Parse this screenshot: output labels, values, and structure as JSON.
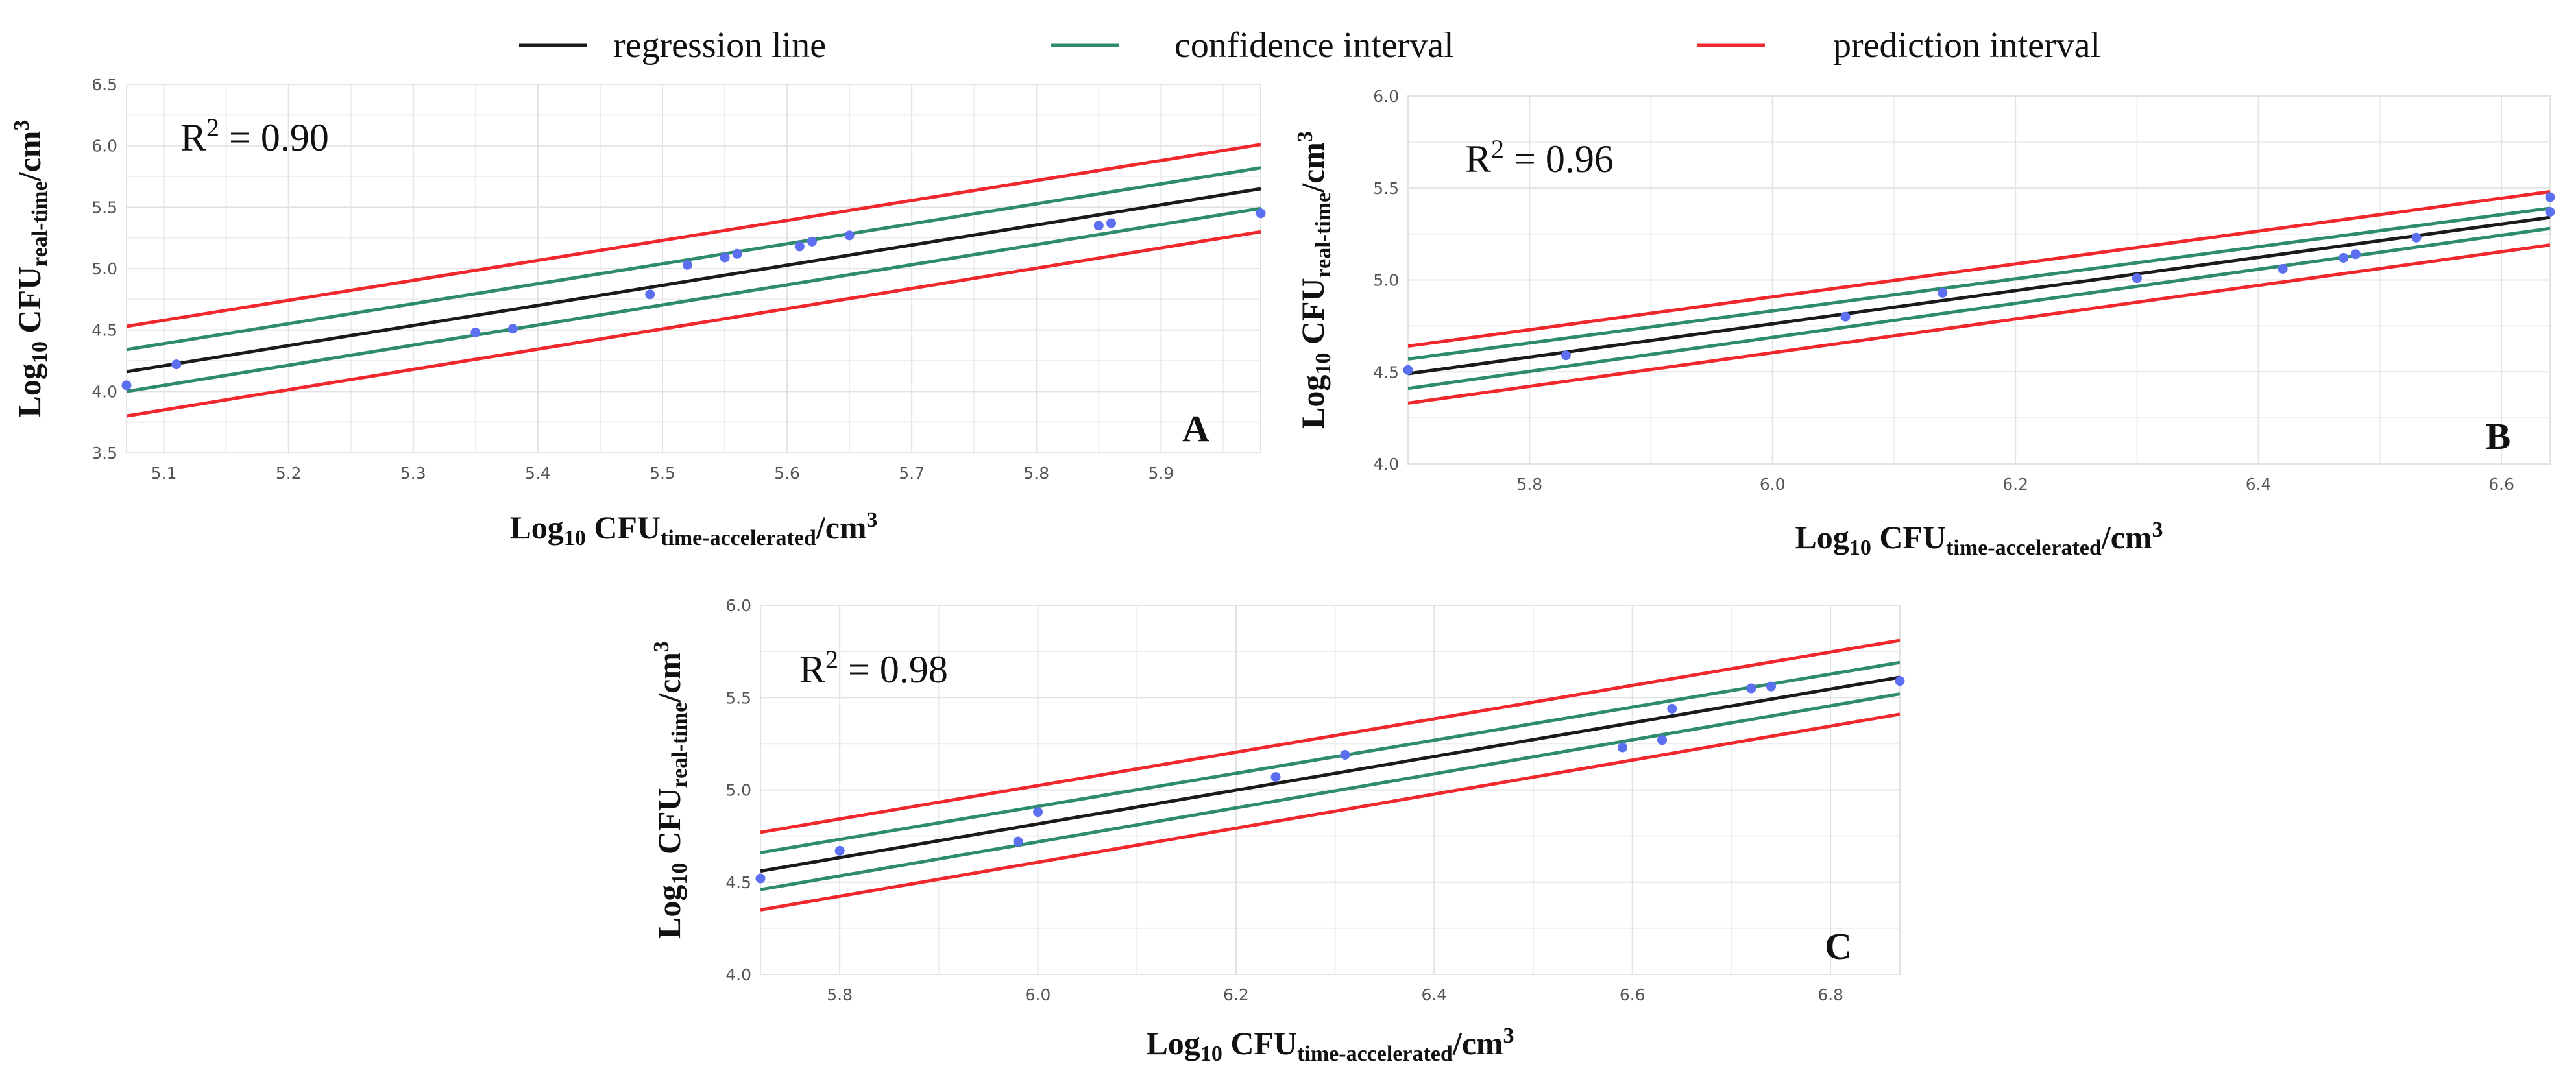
{
  "colors": {
    "regression": "#1a1a1a",
    "confidence": "#2e8b6e",
    "prediction": "#f0282d",
    "points": "#5b6ff0",
    "grid": "#e2e2e2"
  },
  "legend": [
    {
      "key": "regression",
      "label": "regression line"
    },
    {
      "key": "confidence",
      "label": "confidence interval"
    },
    {
      "key": "prediction",
      "label": "prediction interval"
    }
  ],
  "chart_data": [
    {
      "type": "scatter",
      "panel": "A",
      "annotation": {
        "base": "R",
        "sup": "2",
        "rest": " = 0.90"
      },
      "ylabel": {
        "pre": "Log",
        "sub1": "10",
        "mid": " CFU",
        "sub2": "real-time",
        "post": "/cm",
        "sup": "3"
      },
      "xlabel": {
        "pre": "Log",
        "sub1": "10",
        "mid": " CFU",
        "sub2": "time-accelerated",
        "post": "/cm",
        "sup": "3"
      },
      "xlim": [
        5.07,
        5.98
      ],
      "ylim": [
        3.5,
        6.5
      ],
      "xticks": [
        5.1,
        5.2,
        5.3,
        5.4,
        5.5,
        5.6,
        5.7,
        5.8,
        5.9
      ],
      "xtick_labels": [
        "5.1",
        "5.2",
        "5.3",
        "5.4",
        "5.5",
        "5.6",
        "5.7",
        "5.8",
        "5.9"
      ],
      "xminor": [
        5.15,
        5.25,
        5.35,
        5.45,
        5.55,
        5.65,
        5.75,
        5.85,
        5.95
      ],
      "yticks": [
        3.5,
        4.0,
        4.5,
        5.0,
        5.5,
        6.0,
        6.5
      ],
      "ytick_labels": [
        "3.5",
        "4.0",
        "4.5",
        "5.0",
        "5.5",
        "6.0",
        "6.5"
      ],
      "yminor": [
        3.75,
        4.25,
        4.75,
        5.25,
        5.75,
        6.25
      ],
      "points": [
        [
          5.07,
          4.05
        ],
        [
          5.11,
          4.22
        ],
        [
          5.35,
          4.48
        ],
        [
          5.38,
          4.51
        ],
        [
          5.49,
          4.79
        ],
        [
          5.52,
          5.03
        ],
        [
          5.55,
          5.09
        ],
        [
          5.56,
          5.12
        ],
        [
          5.61,
          5.18
        ],
        [
          5.62,
          5.22
        ],
        [
          5.65,
          5.27
        ],
        [
          5.85,
          5.35
        ],
        [
          5.86,
          5.37
        ],
        [
          5.98,
          5.45
        ]
      ],
      "lines": {
        "regression": [
          [
            5.07,
            4.16
          ],
          [
            5.98,
            5.65
          ]
        ],
        "confidence_upper": [
          [
            5.07,
            4.34
          ],
          [
            5.98,
            5.82
          ]
        ],
        "confidence_lower": [
          [
            5.07,
            4.0
          ],
          [
            5.98,
            5.49
          ]
        ],
        "prediction_upper": [
          [
            5.07,
            4.53
          ],
          [
            5.98,
            6.01
          ]
        ],
        "prediction_lower": [
          [
            5.07,
            3.8
          ],
          [
            5.98,
            5.3
          ]
        ]
      }
    },
    {
      "type": "scatter",
      "panel": "B",
      "annotation": {
        "base": "R",
        "sup": "2",
        "rest": " = 0.96"
      },
      "ylabel": {
        "pre": "Log",
        "sub1": "10",
        "mid": " CFU",
        "sub2": "real-time",
        "post": "/cm",
        "sup": "3"
      },
      "xlabel": {
        "pre": "Log",
        "sub1": "10",
        "mid": " CFU",
        "sub2": "time-accelerated",
        "post": "/cm",
        "sup": "3"
      },
      "xlim": [
        5.7,
        6.64
      ],
      "ylim": [
        4.0,
        6.0
      ],
      "xticks": [
        5.8,
        6.0,
        6.2,
        6.4,
        6.6
      ],
      "xtick_labels": [
        "5.8",
        "6.0",
        "6.2",
        "6.4",
        "6.6"
      ],
      "xminor": [
        5.9,
        6.1,
        6.3,
        6.5
      ],
      "yticks": [
        4.0,
        4.5,
        5.0,
        5.5,
        6.0
      ],
      "ytick_labels": [
        "4.0",
        "4.5",
        "5.0",
        "5.5",
        "6.0"
      ],
      "yminor": [
        4.25,
        4.75,
        5.25,
        5.75
      ],
      "points": [
        [
          5.7,
          4.51
        ],
        [
          5.83,
          4.59
        ],
        [
          6.06,
          4.8
        ],
        [
          6.14,
          4.93
        ],
        [
          6.3,
          5.01
        ],
        [
          6.42,
          5.06
        ],
        [
          6.47,
          5.12
        ],
        [
          6.48,
          5.14
        ],
        [
          6.53,
          5.23
        ],
        [
          6.64,
          5.37
        ],
        [
          6.64,
          5.45
        ]
      ],
      "lines": {
        "regression": [
          [
            5.7,
            4.49
          ],
          [
            6.64,
            5.34
          ]
        ],
        "confidence_upper": [
          [
            5.7,
            4.57
          ],
          [
            6.64,
            5.39
          ]
        ],
        "confidence_lower": [
          [
            5.7,
            4.41
          ],
          [
            6.64,
            5.28
          ]
        ],
        "prediction_upper": [
          [
            5.7,
            4.64
          ],
          [
            6.64,
            5.48
          ]
        ],
        "prediction_lower": [
          [
            5.7,
            4.33
          ],
          [
            6.64,
            5.19
          ]
        ]
      }
    },
    {
      "type": "scatter",
      "panel": "C",
      "annotation": {
        "base": "R",
        "sup": "2",
        "rest": " = 0.98"
      },
      "ylabel": {
        "pre": "Log",
        "sub1": "10",
        "mid": " CFU",
        "sub2": "real-time",
        "post": "/cm",
        "sup": "3"
      },
      "xlabel": {
        "pre": "Log",
        "sub1": "10",
        "mid": " CFU",
        "sub2": "time-accelerated",
        "post": "/cm",
        "sup": "3"
      },
      "xlim": [
        5.72,
        6.87
      ],
      "ylim": [
        4.0,
        6.0
      ],
      "xticks": [
        5.8,
        6.0,
        6.2,
        6.4,
        6.6,
        6.8
      ],
      "xtick_labels": [
        "5.8",
        "6.0",
        "6.2",
        "6.4",
        "6.6",
        "6.8"
      ],
      "xminor": [
        5.9,
        6.1,
        6.3,
        6.5,
        6.7
      ],
      "yticks": [
        4.0,
        4.5,
        5.0,
        5.5,
        6.0
      ],
      "ytick_labels": [
        "4.0",
        "4.5",
        "5.0",
        "5.5",
        "6.0"
      ],
      "yminor": [
        4.25,
        4.75,
        5.25,
        5.75
      ],
      "points": [
        [
          5.72,
          4.52
        ],
        [
          5.8,
          4.67
        ],
        [
          5.98,
          4.72
        ],
        [
          6.0,
          4.88
        ],
        [
          6.24,
          5.07
        ],
        [
          6.31,
          5.19
        ],
        [
          6.59,
          5.23
        ],
        [
          6.63,
          5.27
        ],
        [
          6.64,
          5.44
        ],
        [
          6.72,
          5.55
        ],
        [
          6.74,
          5.56
        ],
        [
          6.87,
          5.59
        ]
      ],
      "lines": {
        "regression": [
          [
            5.72,
            4.56
          ],
          [
            6.87,
            5.61
          ]
        ],
        "confidence_upper": [
          [
            5.72,
            4.66
          ],
          [
            6.87,
            5.69
          ]
        ],
        "confidence_lower": [
          [
            5.72,
            4.46
          ],
          [
            6.87,
            5.52
          ]
        ],
        "prediction_upper": [
          [
            5.72,
            4.77
          ],
          [
            6.87,
            5.81
          ]
        ],
        "prediction_lower": [
          [
            5.72,
            4.35
          ],
          [
            6.87,
            5.41
          ]
        ]
      }
    }
  ]
}
